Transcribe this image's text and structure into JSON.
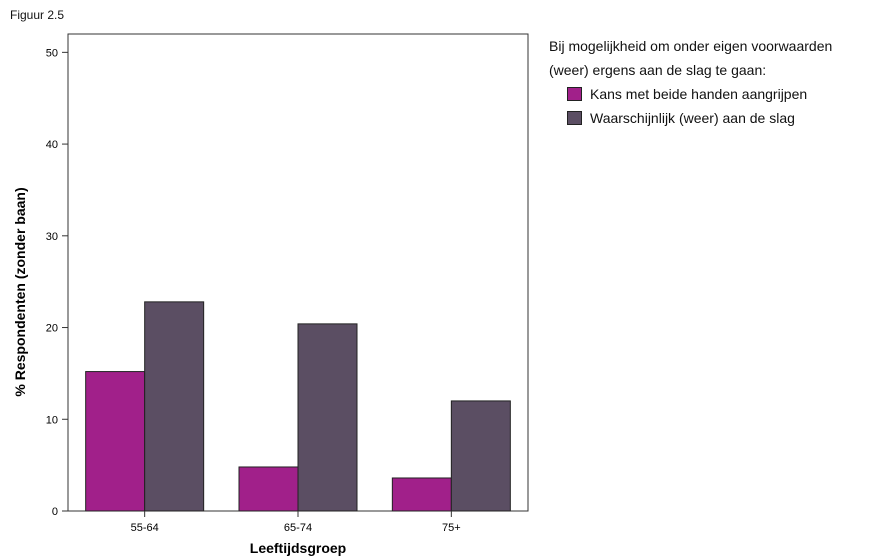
{
  "figure_label": "Figuur 2.5",
  "legend": {
    "title_line1": "Bij mogelijkheid om onder eigen voorwaarden",
    "title_line2": "(weer) ergens aan de slag te gaan:"
  },
  "chart_data": {
    "type": "bar",
    "categories": [
      "55-64",
      "65-74",
      "75+"
    ],
    "series": [
      {
        "name": "Kans met beide handen aangrijpen",
        "values": [
          15.2,
          4.8,
          3.6
        ],
        "color": "#a1208a"
      },
      {
        "name": "Waarschijnlijk (weer) aan de slag",
        "values": [
          22.8,
          20.4,
          12.0
        ],
        "color": "#5b4e63"
      }
    ],
    "xlabel": "Leeftijdsgroep",
    "ylabel": "% Respondenten (zonder baan)",
    "ylim": [
      0,
      52
    ],
    "yticks": [
      0,
      10,
      20,
      30,
      40,
      50
    ],
    "grid": false,
    "legend_position": "top-right outside"
  }
}
